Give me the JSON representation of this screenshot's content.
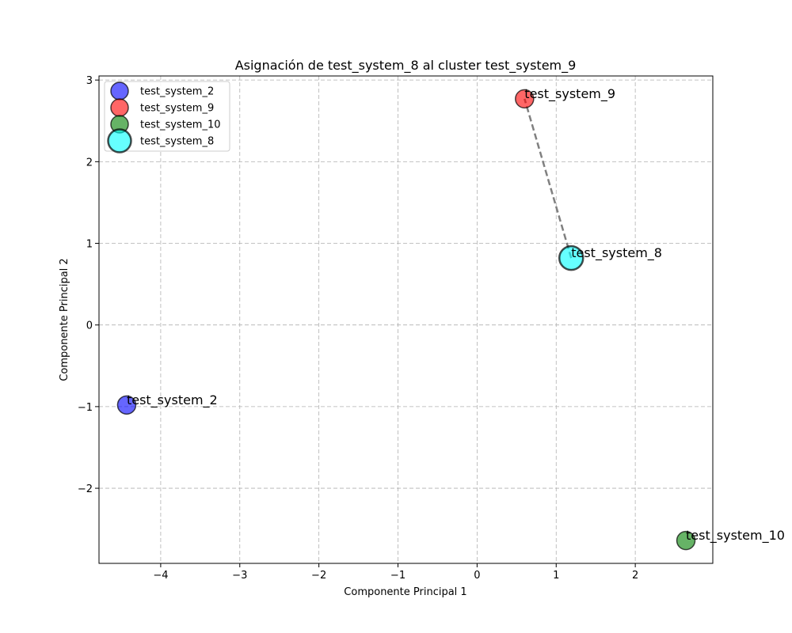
{
  "chart_data": {
    "type": "scatter",
    "title": "Asignación de test_system_8 al cluster test_system_9",
    "xlabel": "Componente Principal 1",
    "ylabel": "Componente Principal 2",
    "xlim": [
      -4.78,
      2.98
    ],
    "ylim": [
      -2.92,
      3.05
    ],
    "xticks": [
      -4,
      -3,
      -2,
      -1,
      0,
      1,
      2
    ],
    "yticks": [
      -2,
      -1,
      0,
      1,
      2,
      3
    ],
    "xtick_labels": [
      "−4",
      "−3",
      "−2",
      "−1",
      "0",
      "1",
      "2"
    ],
    "ytick_labels": [
      "−2",
      "−1",
      "0",
      "1",
      "2",
      "3"
    ],
    "grid": true,
    "legend_position": "top-left",
    "series": [
      {
        "name": "test_system_2",
        "x": -4.43,
        "y": -0.98,
        "color": "#0000ff",
        "size": "normal"
      },
      {
        "name": "test_system_9",
        "x": 0.6,
        "y": 2.77,
        "color": "#ff0000",
        "size": "normal"
      },
      {
        "name": "test_system_10",
        "x": 2.64,
        "y": -2.64,
        "color": "#008000",
        "size": "normal"
      },
      {
        "name": "test_system_8",
        "x": 1.19,
        "y": 0.82,
        "color": "#00ffff",
        "size": "large"
      }
    ],
    "assignment_line": {
      "from": "test_system_8",
      "to": "test_system_9",
      "color": "#808080",
      "style": "dashed"
    }
  }
}
